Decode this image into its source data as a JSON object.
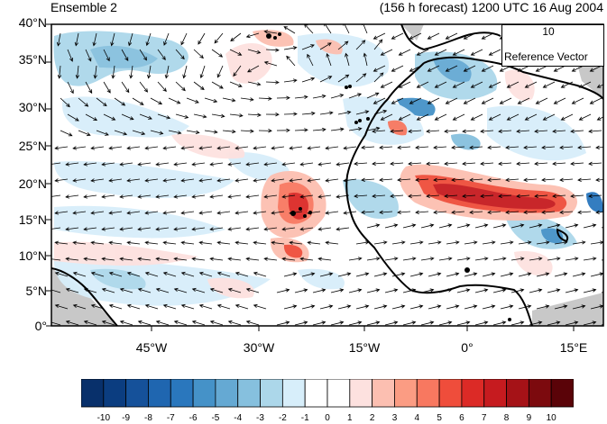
{
  "title": {
    "left": "Ensemble 2",
    "right": "(156 h forecast) 1200 UTC 16 Aug 2004"
  },
  "latitude_labels": [
    "40°N",
    "35°N",
    "30°N",
    "25°N",
    "20°N",
    "15°N",
    "10°N",
    "5°N",
    "0°"
  ],
  "longitude_labels": [
    "45°W",
    "30°W",
    "15°W",
    "0°",
    "15°E"
  ],
  "reference_vector": {
    "value": "10",
    "label": "Reference Vector"
  },
  "colorbar": {
    "labels": [
      "-10",
      "-9",
      "-8",
      "-7",
      "-6",
      "-5",
      "-4",
      "-3",
      "-2",
      "-1",
      "0",
      "1",
      "2",
      "3",
      "4",
      "5",
      "6",
      "7",
      "8",
      "9",
      "10"
    ],
    "colors": [
      "#08306b",
      "#0b3d80",
      "#15519a",
      "#1f66b0",
      "#2a77bd",
      "#4592c8",
      "#65a9d3",
      "#86c0de",
      "#acd7ea",
      "#d7eefa",
      "#ffffff",
      "#ffffff",
      "#fde1df",
      "#fcbfb1",
      "#fb9c83",
      "#f87860",
      "#ef4d3b",
      "#dc2a26",
      "#c61b1f",
      "#a51217",
      "#7c0a0e",
      "#5a0308"
    ]
  },
  "map_extent": {
    "lon_min": -57,
    "lon_max": 20,
    "lat_min": 0,
    "lat_max": 40
  },
  "colors": {
    "land_gray": "#c8c8c8",
    "coast": "#000000",
    "vector": "#000000"
  }
}
